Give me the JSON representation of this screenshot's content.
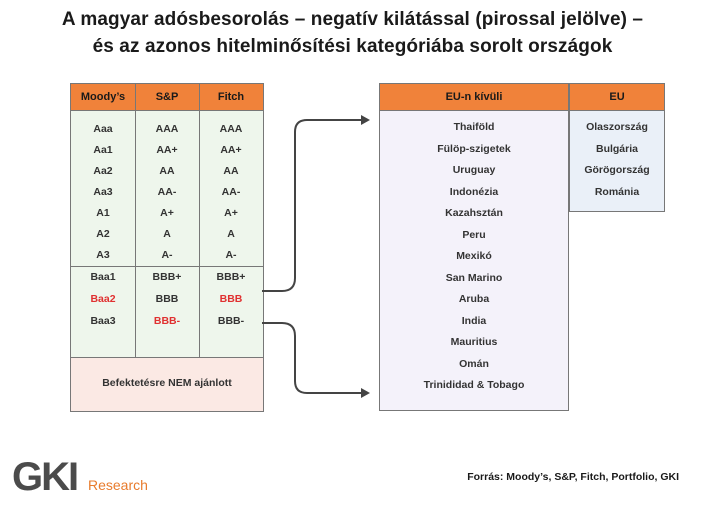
{
  "title": {
    "line1": "A magyar adósbesorolás – negatív kilátással (pirossal jelölve) –",
    "line2": "és az azonos hitelminősítési kategóriába sorolt országok"
  },
  "ratings": {
    "headers": [
      "Moody’s",
      "S&P",
      "Fitch"
    ],
    "moodys": [
      "Aaa",
      "Aa1",
      "Aa2",
      "Aa3",
      "A1",
      "A2",
      "A3",
      "Baa1",
      "Baa2",
      "Baa3"
    ],
    "sp": [
      "AAA",
      "AA+",
      "AA",
      "AA-",
      "A+",
      "A",
      "A-",
      "BBB+",
      "BBB",
      "BBB-"
    ],
    "fitch": [
      "AAA",
      "AA+",
      "AA",
      "AA-",
      "A+",
      "A",
      "A-",
      "BBB+",
      "BBB",
      "BBB-"
    ],
    "highlight_color": "#e03030",
    "footer": "Befektetésre NEM ajánlott"
  },
  "non_eu": {
    "header": "EU-n kívüli",
    "countries": [
      "Thaiföld",
      "Fülöp-szigetek",
      "Uruguay",
      "Indonézia",
      "Kazahsztán",
      "Peru",
      "Mexikó",
      "San Marino",
      "Aruba",
      "India",
      "Mauritius",
      "Omán",
      "Trinididad & Tobago"
    ]
  },
  "eu": {
    "header": "EU",
    "countries": [
      "Olaszország",
      "Bulgária",
      "Görögország",
      "Románia"
    ]
  },
  "colors": {
    "accent": "#f0823a",
    "brand": "#e87b2c"
  },
  "logo": {
    "text": "GKI",
    "sub": "Research"
  },
  "source": "Forrás: Moody’s, S&P, Fitch, Portfolio, GKI"
}
